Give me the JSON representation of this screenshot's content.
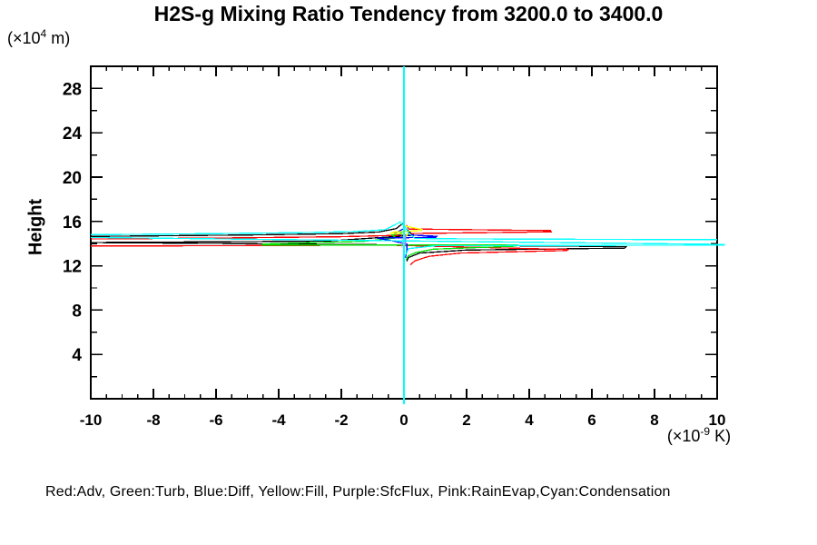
{
  "title": "H2S-g Mixing Ratio Tendency from 3200.0 to 3400.0",
  "y_axis_label": "Height",
  "y_axis_unit": {
    "prefix": "(×10",
    "sup": "4",
    "suffix": " m)"
  },
  "x_axis_unit": {
    "prefix": "(×10",
    "sup": "-9",
    "suffix": " K)"
  },
  "legend_text": "Red:Adv, Green:Turb, Blue:Diff, Yellow:Fill, Purple:SfcFlux, Pink:RainEvap,Cyan:Condensation",
  "chart_data": {
    "type": "line",
    "title": "H2S-g Mixing Ratio Tendency from 3200.0 to 3400.0",
    "xlabel": "(×10^-9 K)",
    "ylabel": "Height (×10^4 m)",
    "xlim": [
      -10,
      10
    ],
    "ylim": [
      0,
      30
    ],
    "grid": false,
    "legend_position": "bottom",
    "x_major_ticks": [
      -10,
      -8,
      -6,
      -4,
      -2,
      0,
      2,
      4,
      6,
      8,
      10
    ],
    "x_minor_step": 0.5,
    "y_major_ticks": [
      4,
      8,
      12,
      16,
      20,
      24,
      28
    ],
    "y_minor_step": 2,
    "frame_color": "#000000",
    "zero_line": {
      "x": 0,
      "color": "#00ffff"
    },
    "series": [
      {
        "name": "(unlabeled black)",
        "color": "#000000",
        "paths": [
          [
            [
              -10,
              14.65
            ],
            [
              -5,
              14.78
            ],
            [
              -2,
              14.9
            ],
            [
              -0.8,
              15.05
            ],
            [
              -0.25,
              15.35
            ],
            [
              -0.05,
              15.8
            ],
            [
              0.1,
              15.25
            ],
            [
              0.3,
              14.75
            ],
            [
              -2.5,
              14.22
            ],
            [
              -10,
              14.1
            ],
            [
              7.1,
              13.73
            ],
            [
              7.05,
              13.6
            ],
            [
              2,
              13.42
            ],
            [
              0.5,
              13.15
            ],
            [
              0.15,
              12.75
            ],
            [
              0.08,
              12.4
            ]
          ]
        ]
      },
      {
        "name": "Adv",
        "color": "#ff0000",
        "paths": [
          [
            [
              0.08,
              15.7
            ],
            [
              0.15,
              15.32
            ],
            [
              4.68,
              15.17
            ],
            [
              4.7,
              15.06
            ],
            [
              0.35,
              14.92
            ],
            [
              -0.2,
              14.75
            ],
            [
              -2,
              14.62
            ],
            [
              -6,
              14.5
            ],
            [
              -10,
              14.42
            ]
          ],
          [
            [
              -10,
              13.78
            ],
            [
              -4,
              13.83
            ],
            [
              -0.6,
              13.87
            ],
            [
              5.25,
              13.47
            ],
            [
              5.2,
              13.38
            ],
            [
              1.8,
              13.15
            ],
            [
              0.8,
              12.85
            ],
            [
              0.35,
              12.45
            ],
            [
              0.2,
              12.08
            ]
          ]
        ]
      },
      {
        "name": "Turb",
        "color": "#00e000",
        "paths": [
          [
            [
              0.04,
              15.25
            ],
            [
              -0.12,
              14.9
            ],
            [
              -0.38,
              14.77
            ],
            [
              -0.25,
              14.52
            ],
            [
              -1.3,
              14.2
            ],
            [
              -4.5,
              13.97
            ],
            [
              -4.52,
              13.88
            ],
            [
              3.6,
              13.86
            ],
            [
              3.57,
              13.77
            ],
            [
              0.95,
              13.5
            ],
            [
              0.38,
              13.2
            ],
            [
              0.14,
              12.9
            ],
            [
              0.07,
              12.55
            ]
          ]
        ]
      },
      {
        "name": "Diff",
        "color": "#0000ff",
        "paths": [
          [
            [
              0.03,
              15.4
            ],
            [
              -0.28,
              14.95
            ],
            [
              -0.12,
              14.82
            ],
            [
              1.05,
              14.66
            ],
            [
              1.02,
              14.57
            ],
            [
              -0.85,
              14.5
            ],
            [
              -0.32,
              14.22
            ],
            [
              0.1,
              13.95
            ],
            [
              0.09,
              13.35
            ],
            [
              0.05,
              12.72
            ]
          ]
        ]
      },
      {
        "name": "Fill",
        "color": "#ffff00",
        "paths": [
          [
            [
              0.03,
              15.6
            ],
            [
              0.28,
              15.44
            ],
            [
              0.58,
              15.28
            ],
            [
              0.55,
              15.17
            ],
            [
              -0.3,
              15.05
            ],
            [
              -0.44,
              14.94
            ],
            [
              0.12,
              14.82
            ],
            [
              0.06,
              14.66
            ]
          ]
        ]
      },
      {
        "name": "SfcFlux",
        "color": "#cc66ff",
        "paths": [
          [
            [
              0.05,
              14.75
            ],
            [
              0.05,
              13.85
            ]
          ]
        ]
      },
      {
        "name": "RainEvap",
        "color": "#ff99cc",
        "paths": [
          [
            [
              -0.06,
              14.5
            ],
            [
              -0.06,
              13.6
            ]
          ]
        ]
      },
      {
        "name": "Condensation",
        "color": "#00ffff",
        "paths": [
          [
            [
              -10,
              14.8
            ],
            [
              -6,
              14.9
            ],
            [
              -3,
              15.0
            ],
            [
              -1.5,
              15.1
            ],
            [
              -0.6,
              15.25
            ],
            [
              -0.12,
              15.95
            ],
            [
              0.05,
              15.45
            ],
            [
              0.15,
              14.95
            ],
            [
              0.35,
              14.47
            ],
            [
              2,
              14.43
            ],
            [
              4.5,
              14.4
            ],
            [
              10,
              14.35
            ]
          ],
          [
            [
              -10,
              14.56
            ],
            [
              10.25,
              13.93
            ]
          ],
          [
            [
              10.25,
              13.87
            ],
            [
              1,
              13.8
            ],
            [
              0.15,
              13.55
            ],
            [
              0.05,
              13.0
            ]
          ]
        ]
      }
    ]
  }
}
